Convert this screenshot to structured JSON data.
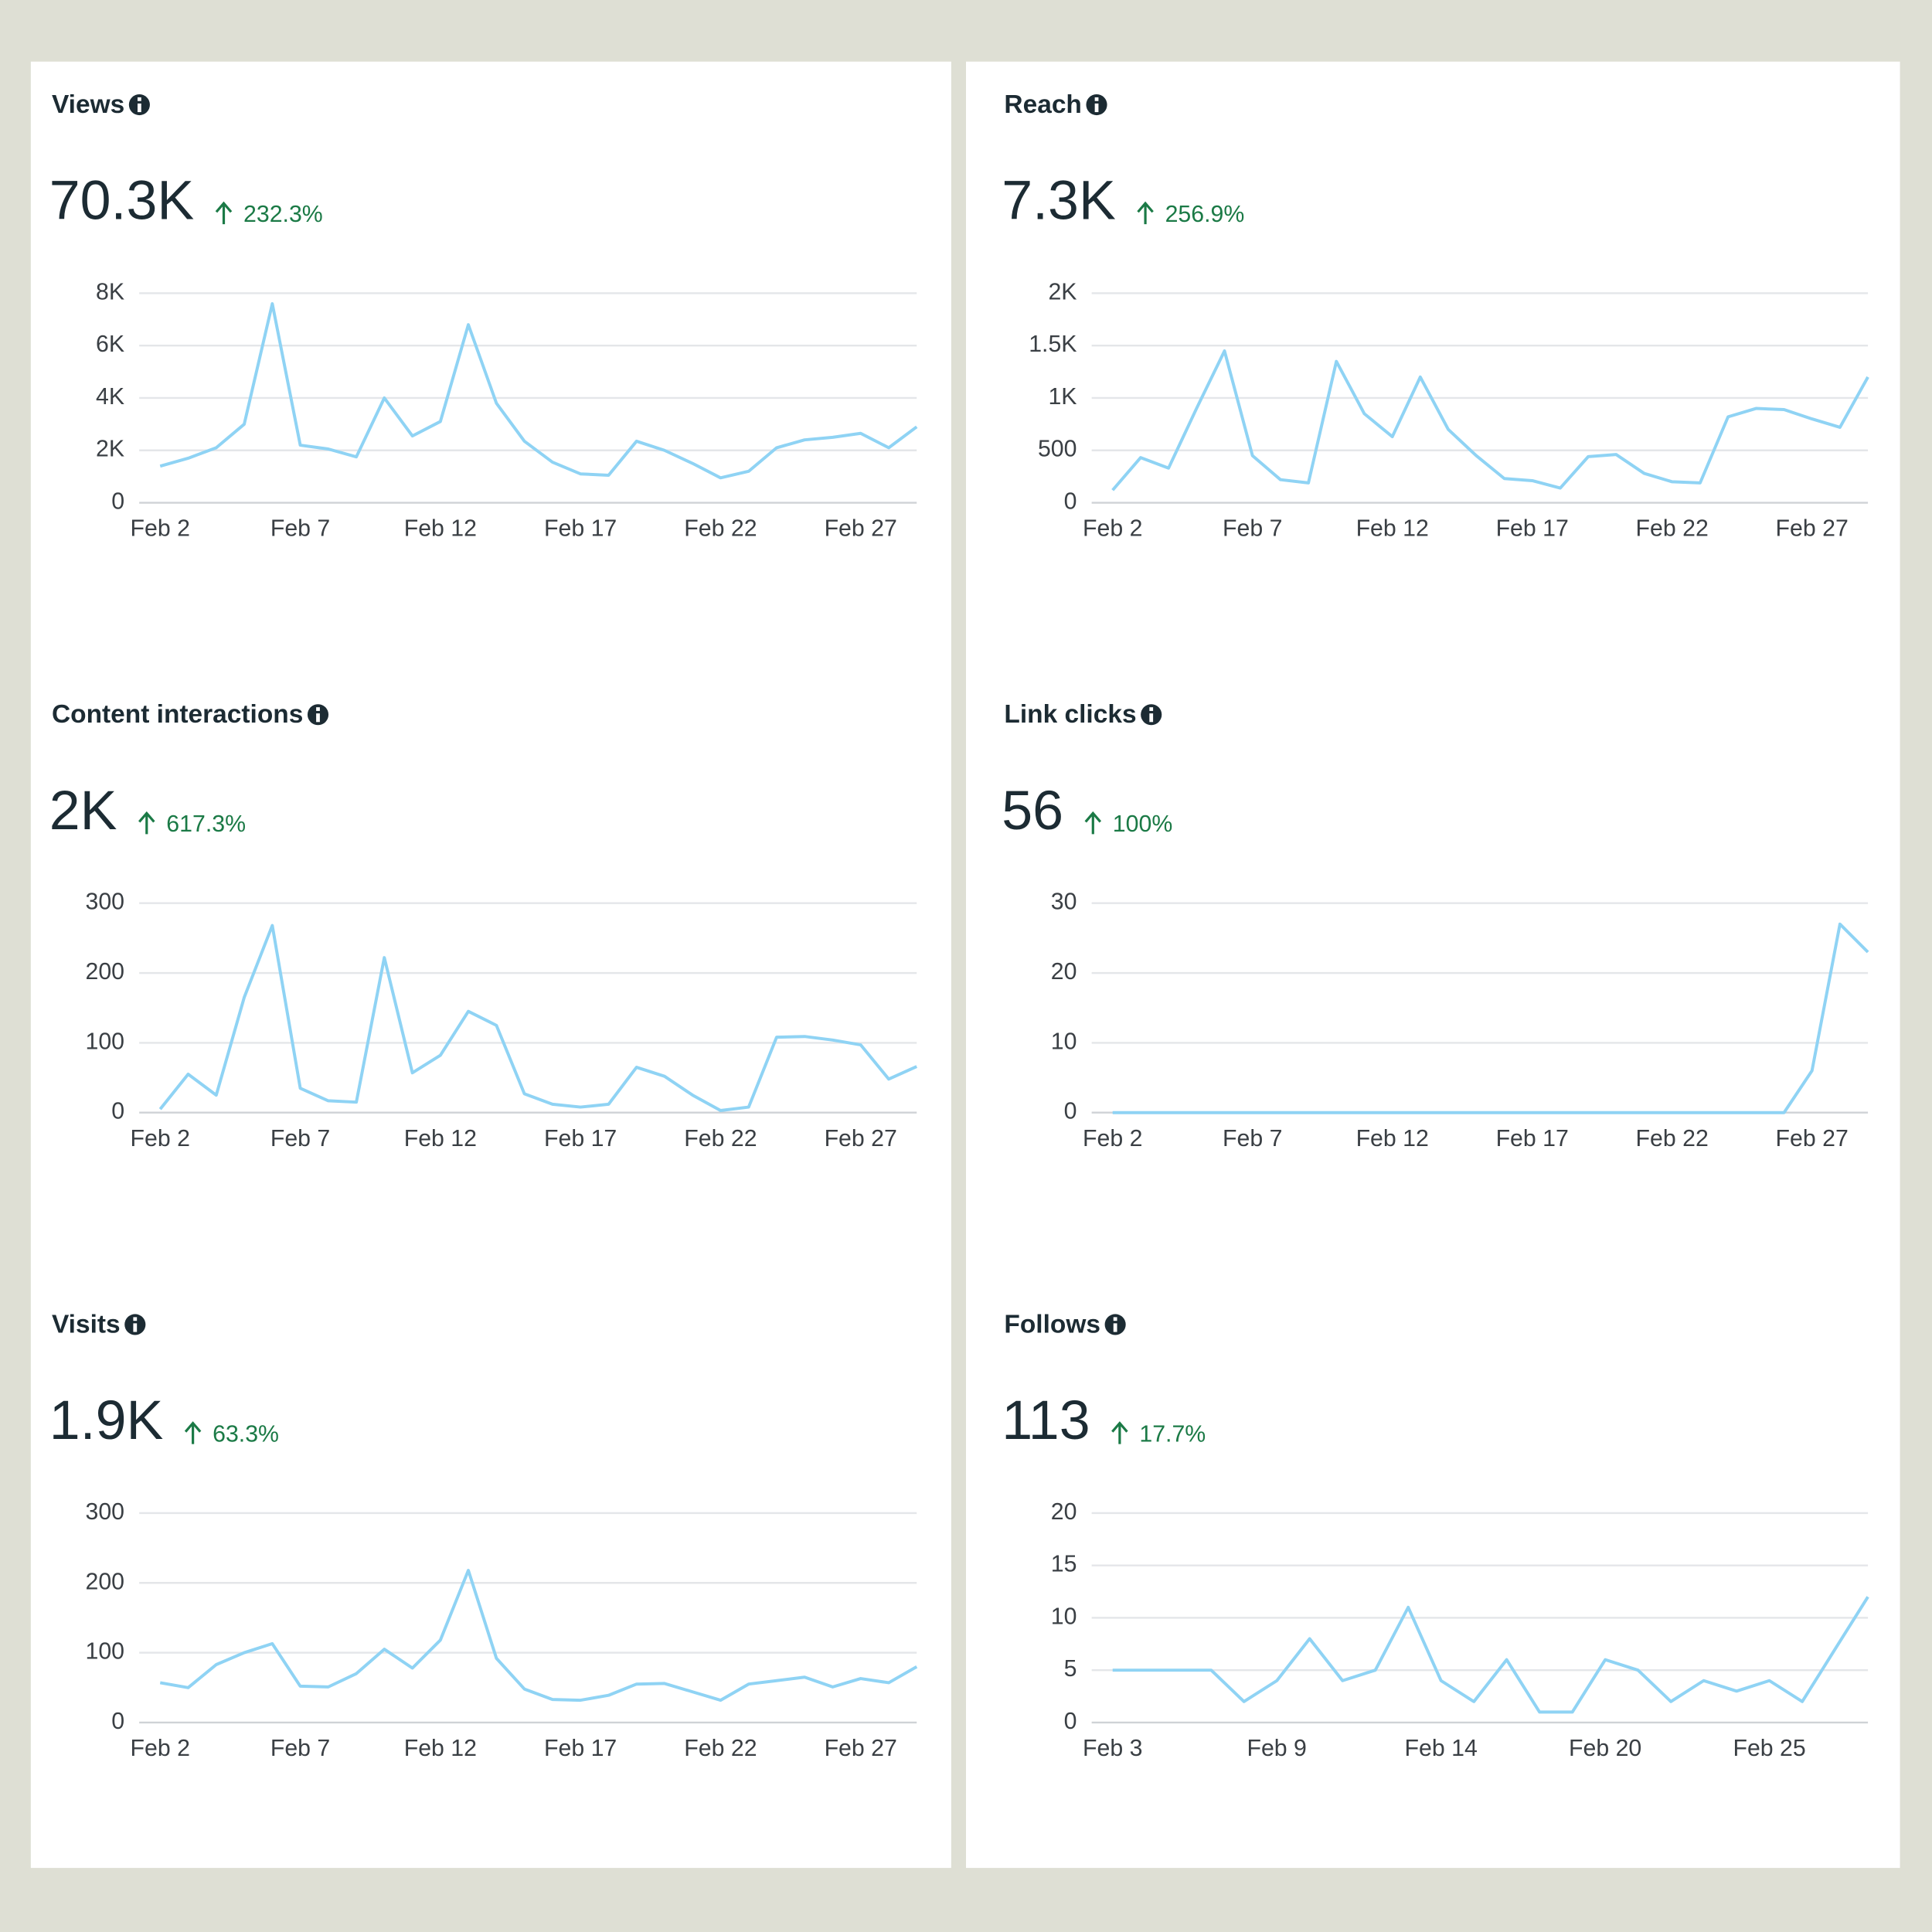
{
  "chart_data": [
    {
      "type": "line",
      "title": "Views",
      "total": "70.3K",
      "change": "232.3%",
      "color": "#8fd3f4",
      "categories": [
        "Feb 2",
        null,
        null,
        null,
        null,
        "Feb 7",
        null,
        null,
        null,
        null,
        "Feb 12",
        null,
        null,
        null,
        null,
        "Feb 17",
        null,
        null,
        null,
        null,
        "Feb 22",
        null,
        null,
        null,
        null,
        "Feb 27",
        null,
        null
      ],
      "values": [
        1400,
        1700,
        2100,
        3000,
        7600,
        2200,
        2050,
        1750,
        4000,
        2550,
        3100,
        6800,
        3800,
        2350,
        1550,
        1100,
        1050,
        2350,
        2000,
        1500,
        950,
        1200,
        2100,
        2400,
        2500,
        2650,
        2100,
        2900
      ],
      "ylim": [
        0,
        8000
      ],
      "yticks": [
        0,
        {
          "value": 2000,
          "label": "2K"
        },
        {
          "value": 4000,
          "label": "4K"
        },
        {
          "value": 6000,
          "label": "6K"
        },
        {
          "value": 8000,
          "label": "8K"
        }
      ],
      "grid": true
    },
    {
      "type": "line",
      "title": "Reach",
      "total": "7.3K",
      "change": "256.9%",
      "color": "#8fd3f4",
      "categories": [
        "Feb 2",
        null,
        null,
        null,
        null,
        "Feb 7",
        null,
        null,
        null,
        null,
        "Feb 12",
        null,
        null,
        null,
        null,
        "Feb 17",
        null,
        null,
        null,
        null,
        "Feb 22",
        null,
        null,
        null,
        null,
        "Feb 27",
        null,
        null
      ],
      "values": [
        120,
        430,
        330,
        900,
        1450,
        450,
        220,
        190,
        1350,
        850,
        630,
        1200,
        700,
        450,
        230,
        210,
        140,
        440,
        460,
        280,
        200,
        190,
        820,
        900,
        890,
        800,
        720,
        1200
      ],
      "ylim": [
        0,
        2000
      ],
      "yticks": [
        0,
        500,
        {
          "value": 1000,
          "label": "1K"
        },
        {
          "value": 1500,
          "label": "1.5K"
        },
        {
          "value": 2000,
          "label": "2K"
        }
      ],
      "grid": true
    },
    {
      "type": "line",
      "title": "Content interactions",
      "total": "2K",
      "change": "617.3%",
      "color": "#8fd3f4",
      "categories": [
        "Feb 2",
        null,
        null,
        null,
        null,
        "Feb 7",
        null,
        null,
        null,
        null,
        "Feb 12",
        null,
        null,
        null,
        null,
        "Feb 17",
        null,
        null,
        null,
        null,
        "Feb 22",
        null,
        null,
        null,
        null,
        "Feb 27",
        null,
        null
      ],
      "values": [
        5,
        55,
        25,
        165,
        268,
        35,
        17,
        15,
        222,
        57,
        82,
        145,
        125,
        27,
        12,
        8,
        12,
        65,
        52,
        25,
        3,
        8,
        108,
        109,
        104,
        97,
        48,
        66
      ],
      "ylim": [
        0,
        300
      ],
      "yticks": [
        0,
        100,
        200,
        300
      ],
      "grid": true
    },
    {
      "type": "line",
      "title": "Link clicks",
      "total": "56",
      "change": "100%",
      "color": "#8fd3f4",
      "categories": [
        "Feb 2",
        null,
        null,
        null,
        null,
        "Feb 7",
        null,
        null,
        null,
        null,
        "Feb 12",
        null,
        null,
        null,
        null,
        "Feb 17",
        null,
        null,
        null,
        null,
        "Feb 22",
        null,
        null,
        null,
        null,
        "Feb 27",
        null,
        null
      ],
      "values": [
        0,
        0,
        0,
        0,
        0,
        0,
        0,
        0,
        0,
        0,
        0,
        0,
        0,
        0,
        0,
        0,
        0,
        0,
        0,
        0,
        0,
        0,
        0,
        0,
        0,
        6,
        27,
        23
      ],
      "ylim": [
        0,
        30
      ],
      "yticks": [
        0,
        10,
        20,
        30
      ],
      "grid": true
    },
    {
      "type": "line",
      "title": "Visits",
      "total": "1.9K",
      "change": "63.3%",
      "color": "#8fd3f4",
      "categories": [
        "Feb 2",
        null,
        null,
        null,
        null,
        "Feb 7",
        null,
        null,
        null,
        null,
        "Feb 12",
        null,
        null,
        null,
        null,
        "Feb 17",
        null,
        null,
        null,
        null,
        "Feb 22",
        null,
        null,
        null,
        null,
        "Feb 27",
        null,
        null
      ],
      "values": [
        57,
        50,
        83,
        100,
        113,
        52,
        51,
        70,
        105,
        78,
        118,
        218,
        92,
        48,
        33,
        32,
        39,
        55,
        56,
        44,
        32,
        55,
        60,
        65,
        51,
        63,
        57,
        80
      ],
      "ylim": [
        0,
        300
      ],
      "yticks": [
        0,
        100,
        200,
        300
      ],
      "grid": true
    },
    {
      "type": "line",
      "title": "Follows",
      "total": "113",
      "change": "17.7%",
      "color": "#8fd3f4",
      "categories": [
        "Feb 3",
        null,
        null,
        null,
        null,
        "Feb 9",
        null,
        null,
        null,
        null,
        "Feb 14",
        null,
        null,
        null,
        null,
        "Feb 20",
        null,
        null,
        null,
        null,
        "Feb 25",
        null,
        null,
        null
      ],
      "values": [
        5,
        5,
        5,
        5,
        2,
        4,
        8,
        4,
        5,
        11,
        4,
        2,
        6,
        1,
        1,
        6,
        5,
        2,
        4,
        3,
        4,
        2,
        7,
        12
      ],
      "ylim": [
        0,
        20
      ],
      "yticks": [
        0,
        5,
        10,
        15,
        20
      ],
      "grid": true
    }
  ]
}
